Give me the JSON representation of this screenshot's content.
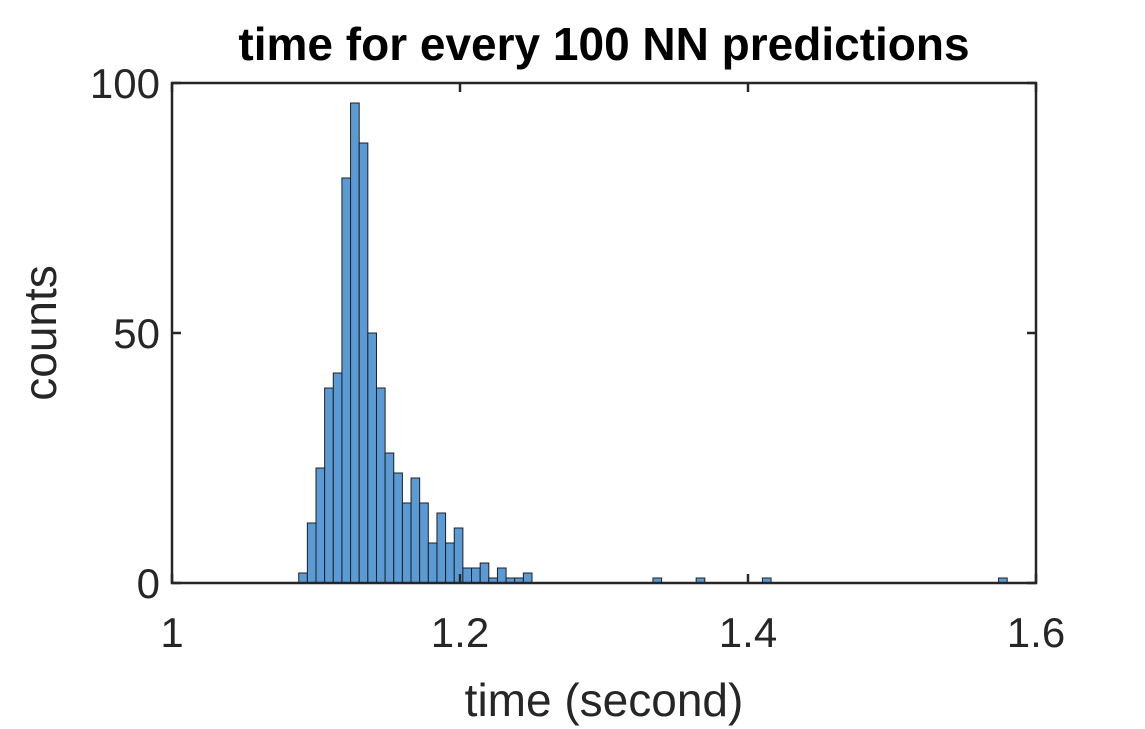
{
  "chart_data": {
    "type": "bar",
    "title": "time for every 100 NN predictions",
    "xlabel": "time (second)",
    "ylabel": "counts",
    "xlim": [
      1,
      1.6
    ],
    "ylim": [
      0,
      100
    ],
    "xticks": [
      1,
      1.2,
      1.4,
      1.6
    ],
    "xtick_labels": [
      "1",
      "1.2",
      "1.4",
      "1.6"
    ],
    "yticks": [
      0,
      50,
      100
    ],
    "ytick_labels": [
      "0",
      "50",
      "100"
    ],
    "bin_width": 0.006,
    "bar_color": "#5b9bd5",
    "edge_color": "#1f1f1f",
    "grid": false,
    "bins": [
      {
        "x": 1.091,
        "count": 2
      },
      {
        "x": 1.097,
        "count": 12
      },
      {
        "x": 1.103,
        "count": 23
      },
      {
        "x": 1.109,
        "count": 39
      },
      {
        "x": 1.115,
        "count": 42
      },
      {
        "x": 1.121,
        "count": 81
      },
      {
        "x": 1.127,
        "count": 96
      },
      {
        "x": 1.133,
        "count": 88
      },
      {
        "x": 1.139,
        "count": 50
      },
      {
        "x": 1.145,
        "count": 39
      },
      {
        "x": 1.151,
        "count": 26
      },
      {
        "x": 1.157,
        "count": 22
      },
      {
        "x": 1.163,
        "count": 16
      },
      {
        "x": 1.169,
        "count": 21
      },
      {
        "x": 1.175,
        "count": 16
      },
      {
        "x": 1.181,
        "count": 8
      },
      {
        "x": 1.187,
        "count": 14
      },
      {
        "x": 1.193,
        "count": 8
      },
      {
        "x": 1.199,
        "count": 11
      },
      {
        "x": 1.205,
        "count": 3
      },
      {
        "x": 1.211,
        "count": 3
      },
      {
        "x": 1.217,
        "count": 4
      },
      {
        "x": 1.223,
        "count": 1
      },
      {
        "x": 1.229,
        "count": 3
      },
      {
        "x": 1.235,
        "count": 1
      },
      {
        "x": 1.241,
        "count": 1
      },
      {
        "x": 1.247,
        "count": 2
      },
      {
        "x": 1.337,
        "count": 1
      },
      {
        "x": 1.367,
        "count": 1
      },
      {
        "x": 1.413,
        "count": 1
      },
      {
        "x": 1.577,
        "count": 1
      }
    ]
  }
}
